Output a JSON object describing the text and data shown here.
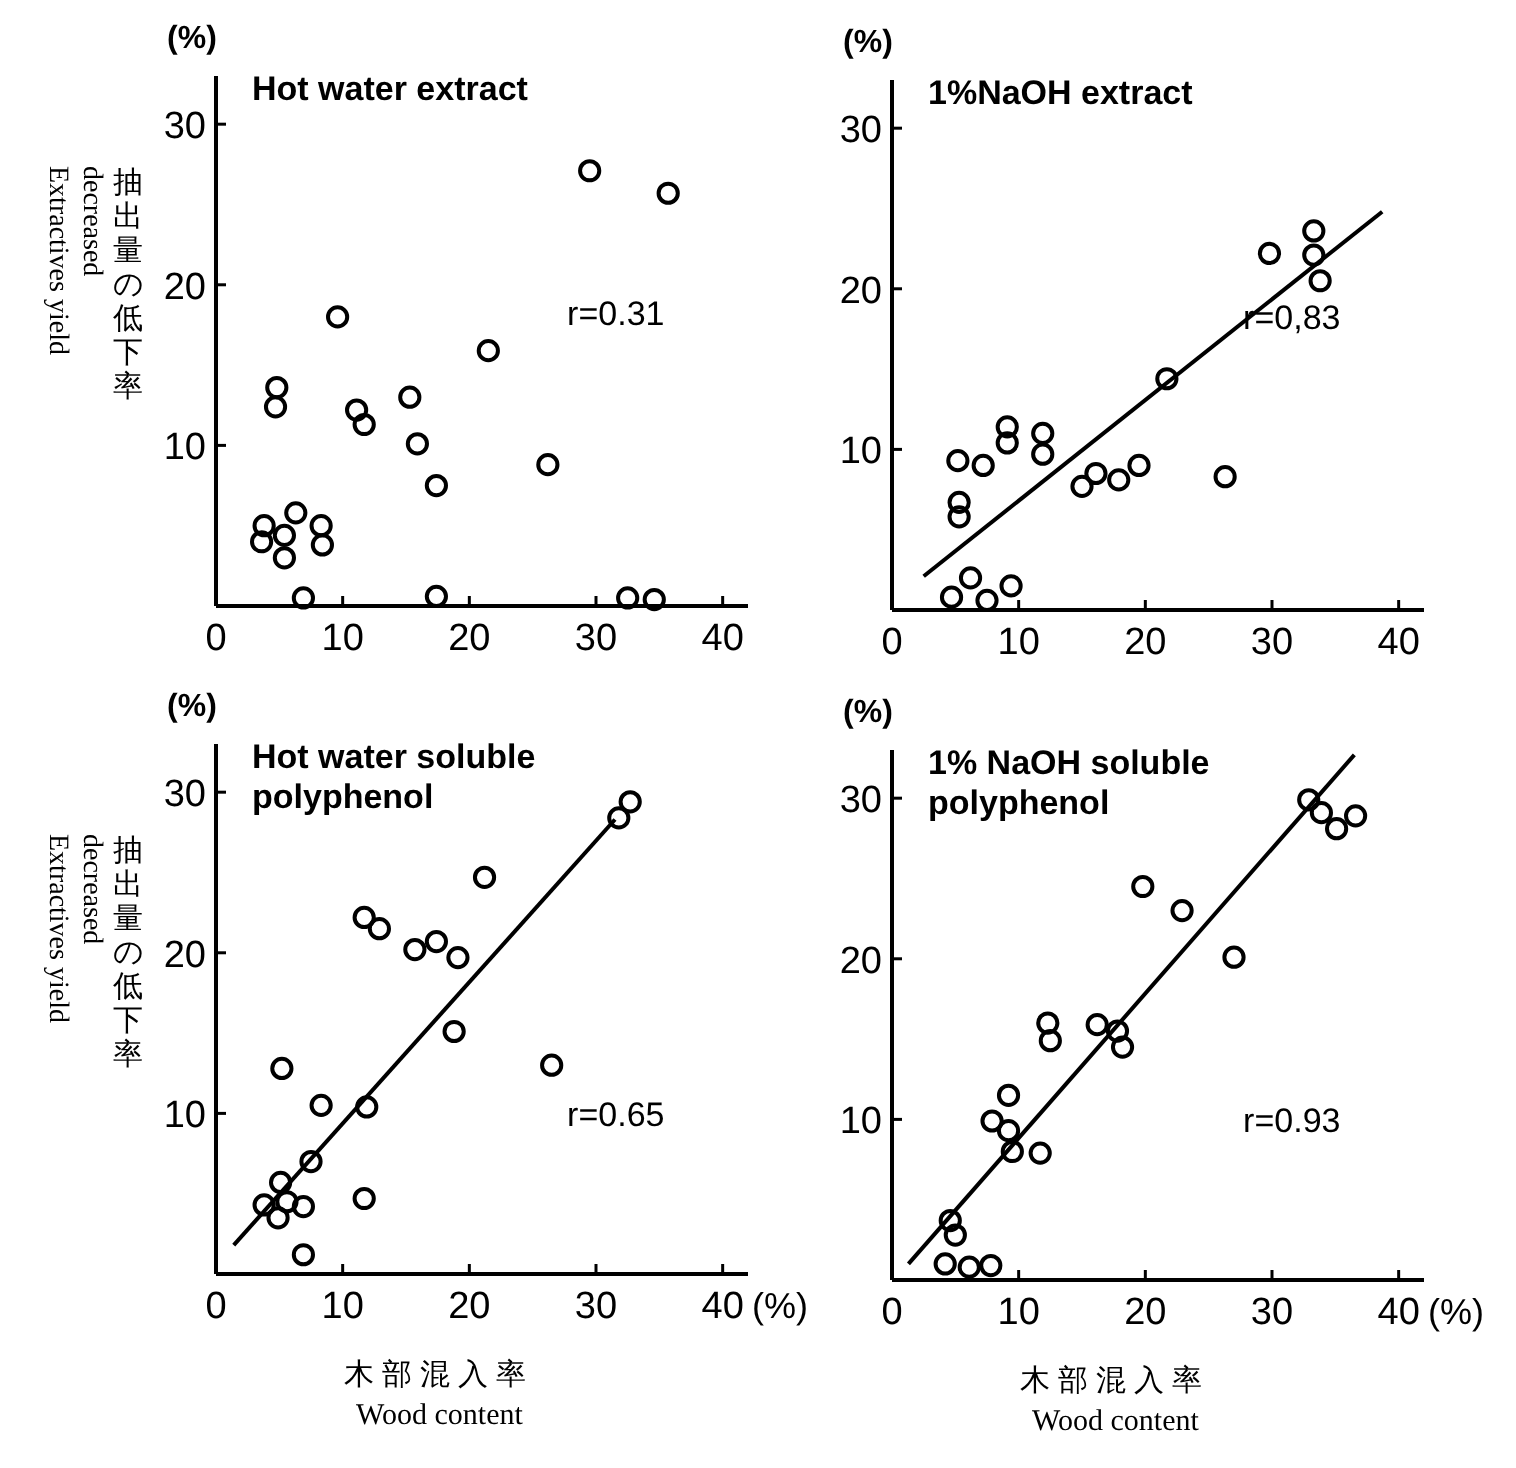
{
  "chart_data": [
    {
      "type": "scatter",
      "title": "Hot water extract",
      "ylabel": "Extractives yield\ndecreased\n抽出量の低下率",
      "annotations": [
        "(%)",
        "r=0.31"
      ],
      "xlim": [
        0,
        42
      ],
      "ylim": [
        0,
        33
      ],
      "xticks": [
        0,
        10,
        20,
        30,
        40
      ],
      "yticks": [
        10,
        20,
        30
      ],
      "marker": "circle",
      "series": [
        {
          "type": "scatter",
          "color": "#000000",
          "x": [
            29.5,
            35.7,
            9.6,
            21.5,
            15.3,
            4.8,
            4.7,
            11.1,
            11.7,
            15.9,
            17.4,
            26.2,
            6.3,
            3.8,
            3.6,
            5.4,
            5.4,
            8.3,
            8.4,
            6.9,
            17.4,
            32.5,
            34.6
          ],
          "values": [
            27.1,
            25.7,
            18.0,
            15.9,
            13.0,
            13.6,
            12.4,
            12.2,
            11.3,
            10.1,
            7.5,
            8.8,
            5.8,
            5.0,
            4.0,
            4.4,
            3.0,
            5.0,
            3.8,
            0.5,
            0.6,
            0.5,
            0.4
          ]
        }
      ]
    },
    {
      "type": "scatter",
      "title": "1%NaOH extract",
      "annotations": [
        "(%)",
        "r=0,83"
      ],
      "xlim": [
        0,
        42
      ],
      "ylim": [
        0,
        33
      ],
      "xticks": [
        0,
        10,
        20,
        30,
        40
      ],
      "yticks": [
        10,
        20,
        30
      ],
      "marker": "circle",
      "series": [
        {
          "type": "scatter",
          "color": "#000000",
          "x": [
            33.3,
            33.3,
            33.8,
            29.8,
            21.7,
            26.3,
            19.5,
            17.9,
            16.1,
            15.0,
            11.9,
            11.9,
            9.1,
            9.1,
            7.2,
            5.2,
            5.3,
            5.3,
            6.2,
            4.7,
            7.5,
            9.4
          ],
          "values": [
            23.6,
            22.1,
            20.5,
            22.2,
            14.4,
            8.3,
            9.0,
            8.1,
            8.5,
            7.7,
            11.0,
            9.7,
            11.4,
            10.4,
            9.0,
            9.3,
            6.7,
            5.8,
            2.0,
            0.8,
            0.6,
            1.5
          ]
        },
        {
          "type": "line",
          "color": "#000000",
          "marker": "none",
          "x": [
            2.5,
            38.7
          ],
          "values": [
            2.1,
            24.8
          ]
        }
      ]
    },
    {
      "type": "scatter",
      "title": "Hot water soluble polyphenol",
      "ylabel": "Extractives yield\ndecreased\n抽出量の低下率",
      "xlabel": "木部混入率\nWood content",
      "annotations": [
        "(%)",
        "r=0.65",
        "(%)"
      ],
      "xlim": [
        0,
        42
      ],
      "ylim": [
        0,
        33
      ],
      "xticks": [
        0,
        10,
        20,
        30,
        40
      ],
      "yticks": [
        10,
        20,
        30
      ],
      "marker": "circle",
      "series": [
        {
          "type": "scatter",
          "color": "#000000",
          "x": [
            32.7,
            31.8,
            21.2,
            11.7,
            12.9,
            15.7,
            17.4,
            19.1,
            18.8,
            26.5,
            5.2,
            8.3,
            11.9,
            7.5,
            5.1,
            3.8,
            5.6,
            4.9,
            6.9,
            11.7,
            6.9
          ],
          "values": [
            29.4,
            28.4,
            24.7,
            22.2,
            21.5,
            20.2,
            20.7,
            19.7,
            15.1,
            13.0,
            12.8,
            10.5,
            10.4,
            7.0,
            5.7,
            4.3,
            4.5,
            3.5,
            4.2,
            4.7,
            1.2
          ]
        },
        {
          "type": "line",
          "color": "#000000",
          "marker": "none",
          "x": [
            1.4,
            31.5
          ],
          "values": [
            1.8,
            28.3
          ]
        }
      ]
    },
    {
      "type": "scatter",
      "title": "1% NaOH soluble polyphenol",
      "xlabel": "木部混入率\nWood content",
      "annotations": [
        "(%)",
        "r=0.93",
        "(%)"
      ],
      "xlim": [
        0,
        42
      ],
      "ylim": [
        0,
        33
      ],
      "xticks": [
        0,
        10,
        20,
        30,
        40
      ],
      "yticks": [
        10,
        20,
        30
      ],
      "marker": "circle",
      "series": [
        {
          "type": "scatter",
          "color": "#000000",
          "x": [
            32.9,
            33.9,
            35.1,
            36.6,
            19.8,
            22.9,
            27.0,
            12.3,
            12.5,
            16.2,
            17.8,
            18.2,
            9.2,
            7.9,
            9.2,
            9.5,
            11.7,
            4.6,
            5.0,
            4.2,
            6.1,
            7.8
          ],
          "values": [
            29.9,
            29.1,
            28.1,
            28.9,
            24.5,
            23.0,
            20.1,
            16.0,
            14.9,
            15.9,
            15.5,
            14.5,
            11.5,
            9.9,
            9.3,
            8.0,
            7.9,
            3.7,
            2.8,
            1.0,
            0.8,
            0.9
          ]
        },
        {
          "type": "line",
          "color": "#000000",
          "marker": "none",
          "x": [
            1.3,
            36.5
          ],
          "values": [
            1.0,
            32.7
          ]
        }
      ]
    }
  ]
}
